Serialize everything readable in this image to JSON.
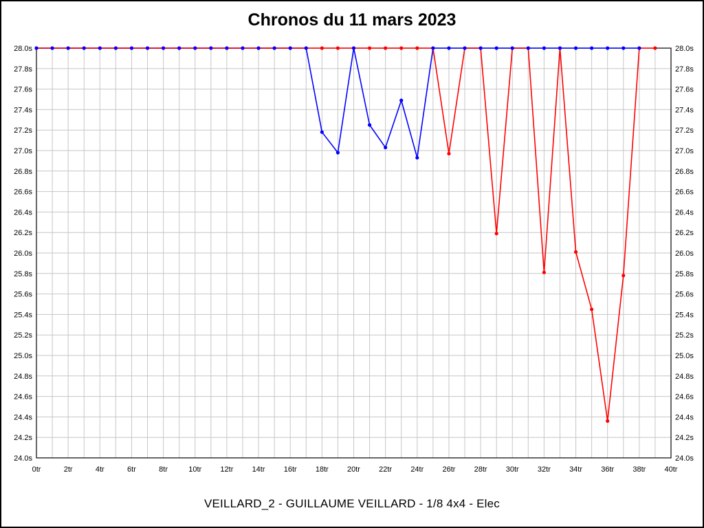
{
  "page": {
    "title": "Chronos du 11 mars 2023",
    "caption": "VEILLARD_2 - GUILLAUME VEILLARD - 1/8 4x4 - Elec"
  },
  "chart_data": {
    "type": "line",
    "title": "Chronos du 11 mars 2023",
    "xlabel": "",
    "ylabel": "",
    "x_unit": "tr",
    "y_unit": "s",
    "xlim": [
      0,
      40
    ],
    "ylim": [
      24.0,
      28.0
    ],
    "x_tick_step": 2,
    "y_tick_step": 0.2,
    "grid": true,
    "grid_color": "#c6c6c6",
    "legend_position": "none",
    "x_tick_labels": [
      "0tr",
      "2tr",
      "4tr",
      "6tr",
      "8tr",
      "10tr",
      "12tr",
      "14tr",
      "16tr",
      "18tr",
      "20tr",
      "22tr",
      "24tr",
      "26tr",
      "28tr",
      "30tr",
      "32tr",
      "34tr",
      "36tr",
      "38tr",
      "40tr"
    ],
    "y_tick_labels": [
      "28.0s",
      "27.8s",
      "27.6s",
      "27.4s",
      "27.2s",
      "27.0s",
      "26.8s",
      "26.6s",
      "26.4s",
      "26.2s",
      "26.0s",
      "25.8s",
      "25.6s",
      "25.4s",
      "25.2s",
      "25.0s",
      "24.8s",
      "24.6s",
      "24.4s",
      "24.2s",
      "24.0s"
    ],
    "series": [
      {
        "name": "blue",
        "color": "#0000ff",
        "x": [
          0,
          1,
          2,
          3,
          4,
          5,
          6,
          7,
          8,
          9,
          10,
          11,
          12,
          13,
          14,
          15,
          16,
          17,
          18,
          19,
          20,
          21,
          22,
          23,
          24,
          25,
          26,
          27,
          28,
          29,
          30,
          31,
          32,
          33,
          34,
          35,
          36,
          37,
          38
        ],
        "y": [
          28.0,
          28.0,
          28.0,
          28.0,
          28.0,
          28.0,
          28.0,
          28.0,
          28.0,
          28.0,
          28.0,
          28.0,
          28.0,
          28.0,
          28.0,
          28.0,
          28.0,
          28.0,
          27.18,
          26.98,
          28.0,
          27.25,
          27.03,
          27.49,
          26.93,
          28.0,
          28.0,
          28.0,
          28.0,
          28.0,
          28.0,
          28.0,
          28.0,
          28.0,
          28.0,
          28.0,
          28.0,
          28.0,
          28.0
        ]
      },
      {
        "name": "red",
        "color": "#ff0000",
        "x": [
          0,
          1,
          2,
          3,
          4,
          5,
          6,
          7,
          8,
          9,
          10,
          11,
          12,
          13,
          14,
          15,
          16,
          17,
          18,
          19,
          20,
          21,
          22,
          23,
          24,
          25,
          26,
          27,
          28,
          29,
          30,
          31,
          32,
          33,
          34,
          35,
          36,
          37,
          38,
          39
        ],
        "y": [
          28.0,
          28.0,
          28.0,
          28.0,
          28.0,
          28.0,
          28.0,
          28.0,
          28.0,
          28.0,
          28.0,
          28.0,
          28.0,
          28.0,
          28.0,
          28.0,
          28.0,
          28.0,
          28.0,
          28.0,
          28.0,
          28.0,
          28.0,
          28.0,
          28.0,
          28.0,
          26.97,
          28.0,
          28.0,
          26.19,
          28.0,
          28.0,
          25.81,
          28.0,
          26.01,
          25.45,
          24.36,
          25.78,
          28.0,
          28.0
        ]
      }
    ]
  },
  "colors": {
    "background": "#ffffff",
    "border": "#000000",
    "grid": "#c6c6c6",
    "series_blue": "#0000ff",
    "series_red": "#ff0000"
  }
}
